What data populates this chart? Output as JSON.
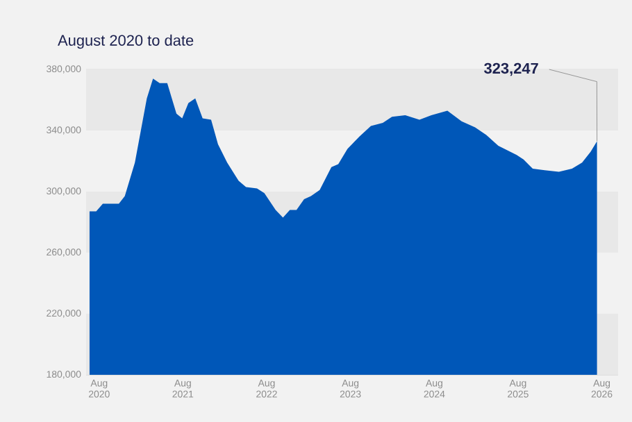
{
  "chart_data": {
    "type": "area",
    "title": "August 2020 to date",
    "color": "#0057b8",
    "grid": "y",
    "x": [
      "2020-06-20",
      "2020-07-19",
      "2020-08-17",
      "2020-10-26",
      "2020-11-21",
      "2021-01-04",
      "2021-02-25",
      "2021-03-24",
      "2021-04-22",
      "2021-05-25",
      "2021-06-16",
      "2021-07-04",
      "2021-07-29",
      "2021-08-25",
      "2021-09-24",
      "2021-10-26",
      "2021-12-02",
      "2022-01-01",
      "2022-02-10",
      "2022-04-01",
      "2022-05-03",
      "2022-06-20",
      "2022-07-22",
      "2022-09-09",
      "2022-10-11",
      "2022-11-10",
      "2022-12-09",
      "2023-01-11",
      "2023-02-10",
      "2023-03-20",
      "2023-05-10",
      "2023-06-09",
      "2023-07-19",
      "2023-09-09",
      "2023-10-29",
      "2023-12-20",
      "2024-01-29",
      "2024-03-27",
      "2024-05-28",
      "2024-07-19",
      "2024-09-27",
      "2024-11-28",
      "2025-01-26",
      "2025-03-16",
      "2025-05-07",
      "2025-07-26",
      "2025-08-25",
      "2025-10-04",
      "2025-11-25",
      "2026-01-26",
      "2026-03-24",
      "2026-05-07",
      "2026-06-13",
      "2026-07-11"
    ],
    "values": [
      287000,
      287000,
      292000,
      292000,
      297000,
      319000,
      361000,
      374000,
      371000,
      371000,
      360000,
      351000,
      348000,
      358000,
      361000,
      348000,
      347000,
      331000,
      319000,
      307000,
      303000,
      302000,
      299000,
      288000,
      283000,
      288000,
      288000,
      295000,
      297000,
      301000,
      316000,
      318000,
      328000,
      336000,
      343000,
      345000,
      349000,
      350000,
      347000,
      350000,
      353000,
      346000,
      342000,
      337000,
      330000,
      324000,
      321000,
      315000,
      314000,
      313000,
      315000,
      319000,
      326000,
      333000
    ],
    "xlim": [
      "2020-06-05",
      "2026-10-11"
    ],
    "xticks": [
      {
        "value": "2020-08-01",
        "label": "Aug 2020"
      },
      {
        "value": "2021-08-01",
        "label": "Aug 2021"
      },
      {
        "value": "2022-08-01",
        "label": "Aug 2022"
      },
      {
        "value": "2023-08-01",
        "label": "Aug 2023"
      },
      {
        "value": "2024-08-01",
        "label": "Aug 2024"
      },
      {
        "value": "2025-08-01",
        "label": "Aug 2025"
      },
      {
        "value": "2026-08-01",
        "label": "Aug 2026"
      }
    ],
    "ylim": [
      180000,
      380000
    ],
    "yticks": [
      {
        "value": 180000,
        "label": "180,000"
      },
      {
        "value": 220000,
        "label": "220,000"
      },
      {
        "value": 260000,
        "label": "260,000"
      },
      {
        "value": 300000,
        "label": "300,000"
      },
      {
        "value": 340000,
        "label": "340,000"
      },
      {
        "value": 380000,
        "label": "380,000"
      }
    ],
    "annotations": [
      {
        "text": "323,247",
        "x": "2026-07-11",
        "y": 333000
      }
    ]
  }
}
